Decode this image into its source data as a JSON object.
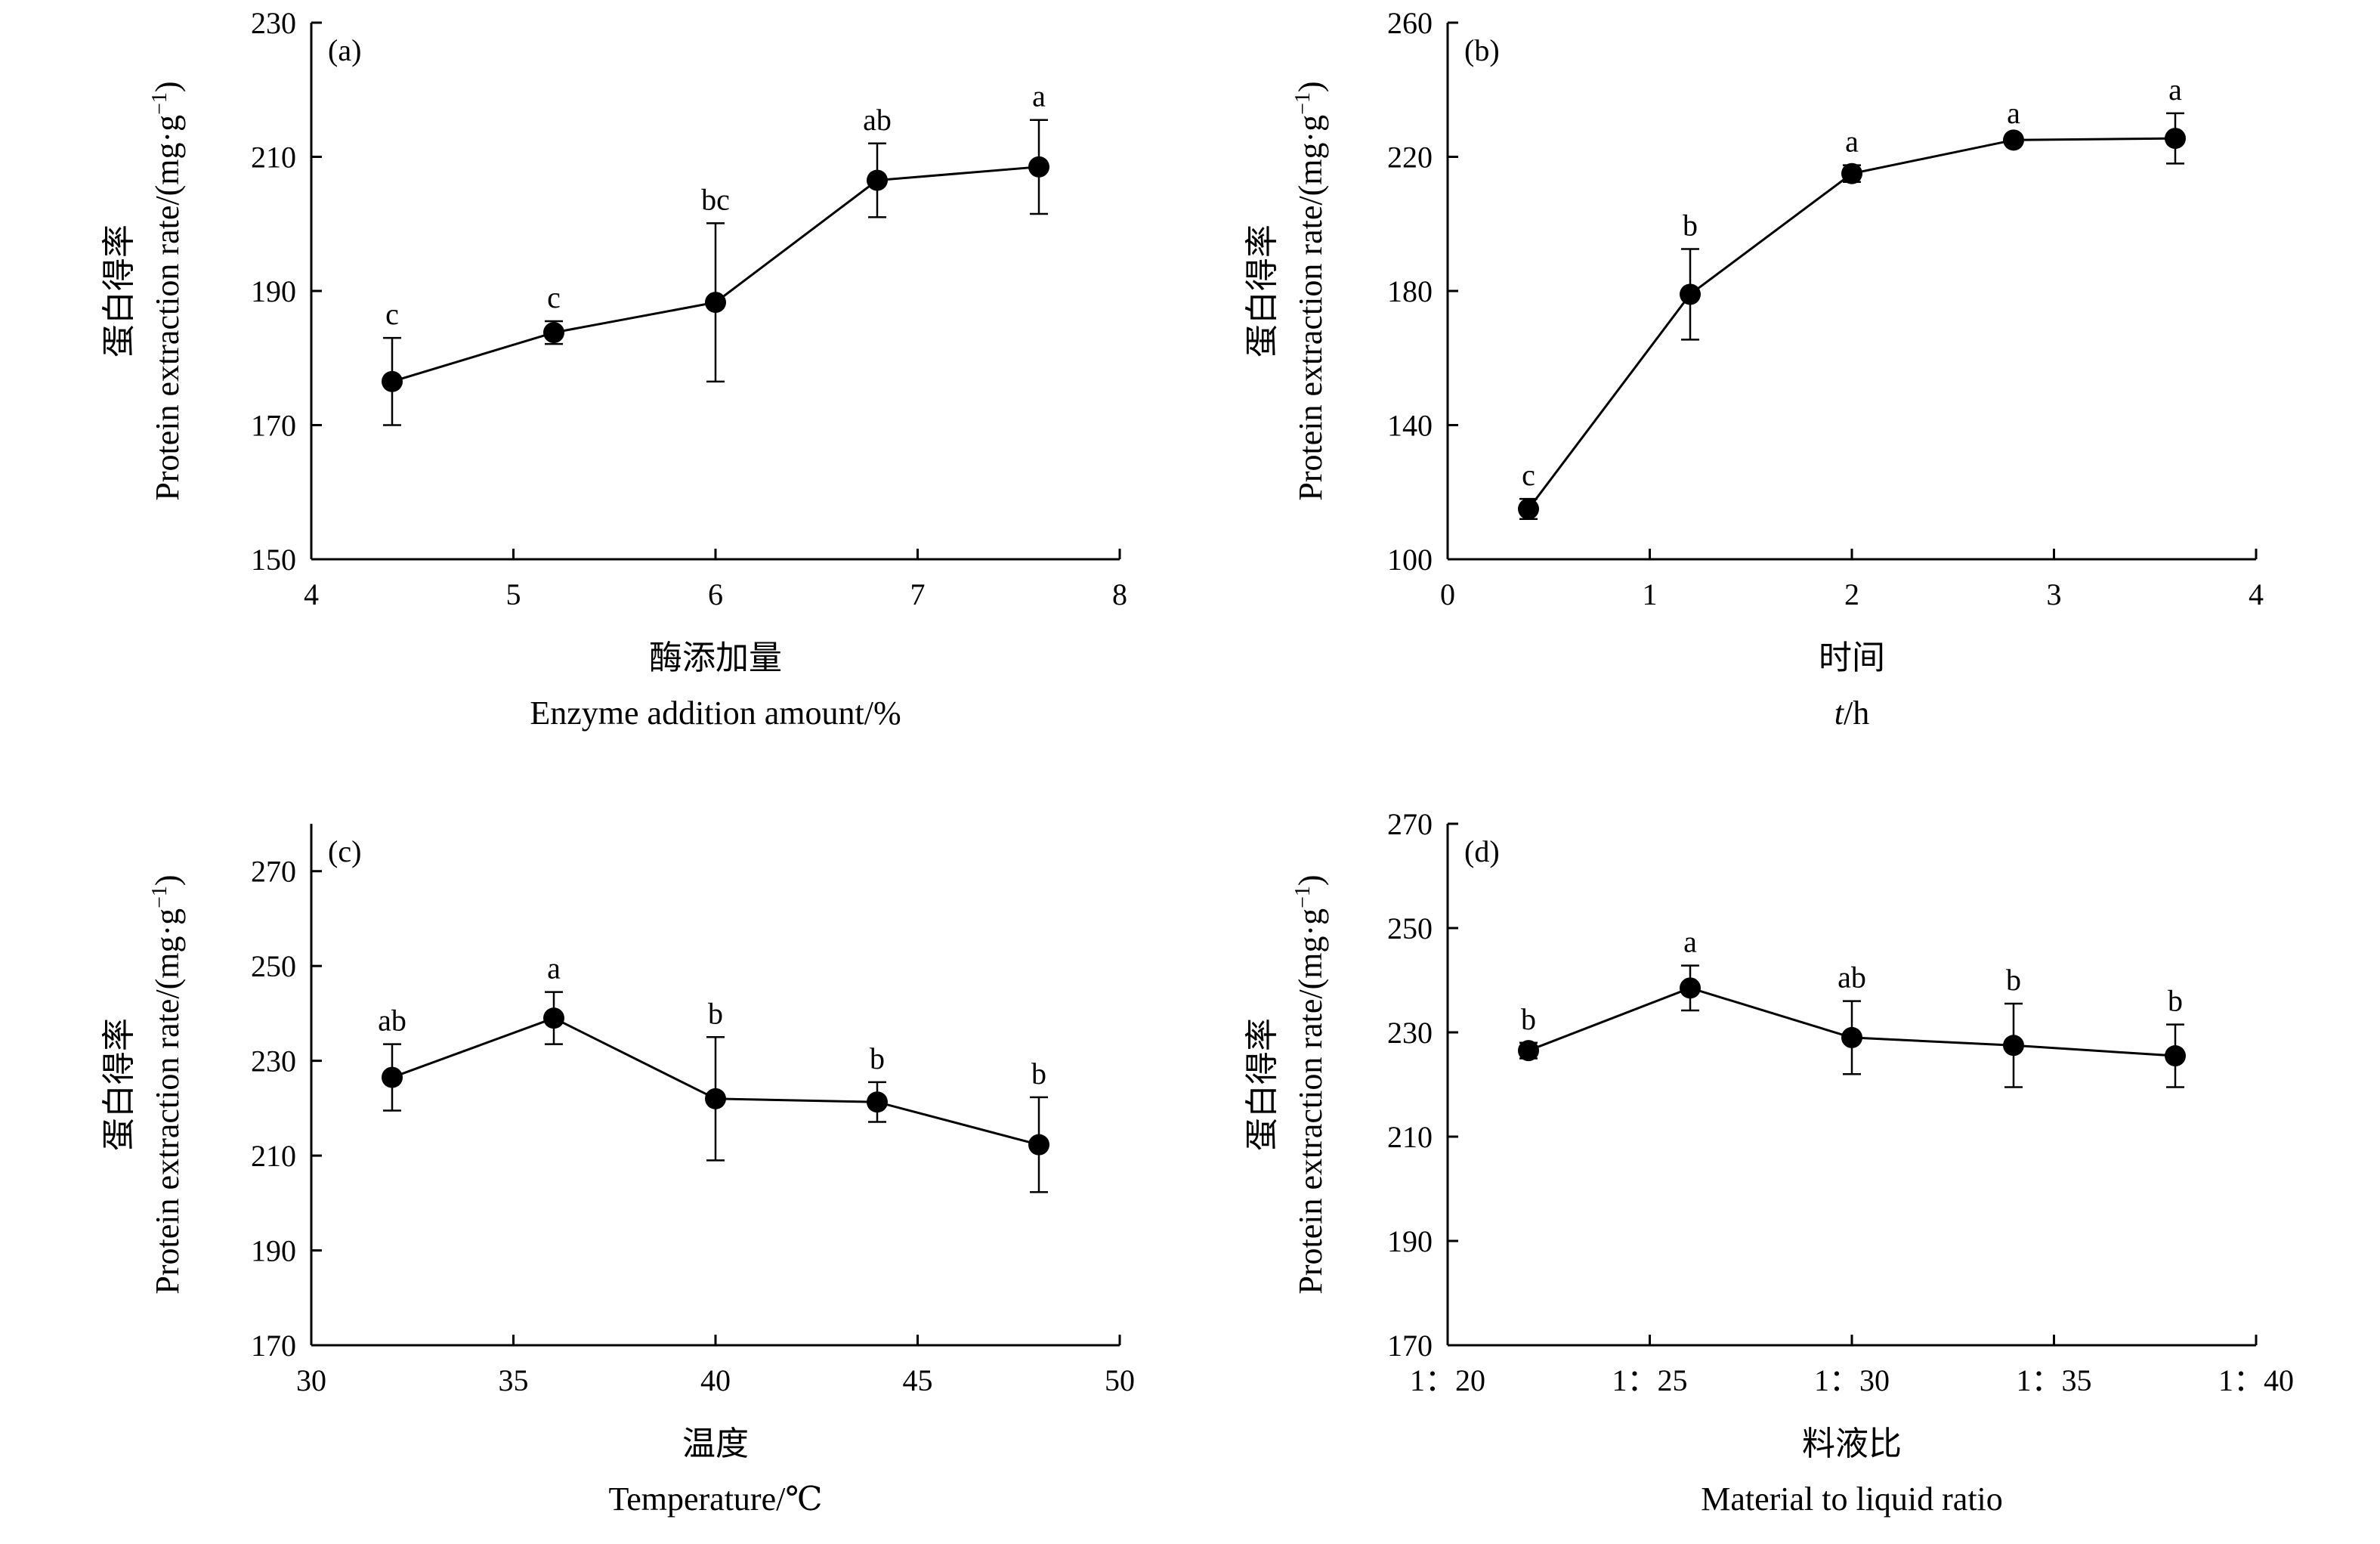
{
  "chart_data": [
    {
      "type": "line",
      "panel_label": "(a)",
      "ylabel_cn": "蛋白得率",
      "ylabel_en": "Protein extraction rate/(mg·g",
      "ylabel_sup": "−1",
      "ylabel_close": ")",
      "xlabel_cn": "酶添加量",
      "xlabel_en": "Enzyme addition amount/%",
      "xlabel_italic": "",
      "xlabel_rest": "",
      "xlim": [
        4,
        8
      ],
      "ylim": [
        150,
        230
      ],
      "xticks": [
        4,
        5,
        6,
        7,
        8
      ],
      "xtick_labels": [
        "4",
        "5",
        "6",
        "7",
        "8"
      ],
      "yticks": [
        150,
        170,
        190,
        210,
        230
      ],
      "ytick_labels": [
        "150",
        "170",
        "190",
        "210",
        "230"
      ],
      "points": [
        {
          "x": 4.4,
          "y": 176.5,
          "err_low": 6.5,
          "err_high": 6.5,
          "letter": "c"
        },
        {
          "x": 5.2,
          "y": 183.8,
          "err_low": 1.7,
          "err_high": 1.7,
          "letter": "c"
        },
        {
          "x": 6.0,
          "y": 188.3,
          "err_low": 11.8,
          "err_high": 11.8,
          "letter": "bc"
        },
        {
          "x": 6.8,
          "y": 206.5,
          "err_low": 5.5,
          "err_high": 5.5,
          "letter": "ab"
        },
        {
          "x": 7.6,
          "y": 208.5,
          "err_low": 7.0,
          "err_high": 7.0,
          "letter": "a"
        }
      ]
    },
    {
      "type": "line",
      "panel_label": "(b)",
      "ylabel_cn": "蛋白得率",
      "ylabel_en": "Protein extraction rate/(mg·g",
      "ylabel_sup": "−1",
      "ylabel_close": ")",
      "xlabel_cn": "时间",
      "xlabel_en": "",
      "xlabel_italic": "t",
      "xlabel_rest": "/h",
      "xlim": [
        0,
        4
      ],
      "ylim": [
        100,
        260
      ],
      "xticks": [
        0,
        1,
        2,
        3,
        4
      ],
      "xtick_labels": [
        "0",
        "1",
        "2",
        "3",
        "4"
      ],
      "yticks": [
        100,
        140,
        180,
        220,
        260
      ],
      "ytick_labels": [
        "100",
        "140",
        "180",
        "220",
        "260"
      ],
      "points": [
        {
          "x": 0.4,
          "y": 115.0,
          "err_low": 3.0,
          "err_high": 3.0,
          "letter": "c"
        },
        {
          "x": 1.2,
          "y": 179.0,
          "err_low": 13.5,
          "err_high": 13.5,
          "letter": "b"
        },
        {
          "x": 2.0,
          "y": 215.0,
          "err_low": 2.5,
          "err_high": 2.5,
          "letter": "a"
        },
        {
          "x": 2.8,
          "y": 225.0,
          "err_low": 1.0,
          "err_high": 1.0,
          "letter": "a"
        },
        {
          "x": 3.6,
          "y": 225.5,
          "err_low": 7.5,
          "err_high": 7.5,
          "letter": "a"
        }
      ]
    },
    {
      "type": "line",
      "panel_label": "(c)",
      "ylabel_cn": "蛋白得率",
      "ylabel_en": "Protein extraction rate/(mg·g",
      "ylabel_sup": "−1",
      "ylabel_close": ")",
      "xlabel_cn": "温度",
      "xlabel_en": "Temperature/℃",
      "xlabel_italic": "",
      "xlabel_rest": "",
      "xlim": [
        30,
        50
      ],
      "ylim": [
        170,
        280
      ],
      "xticks": [
        30,
        35,
        40,
        45,
        50
      ],
      "xtick_labels": [
        "30",
        "35",
        "40",
        "45",
        "50"
      ],
      "yticks": [
        170,
        190,
        210,
        230,
        250,
        270
      ],
      "ytick_labels": [
        "170",
        "190",
        "210",
        "230",
        "250",
        "270"
      ],
      "points": [
        {
          "x": 32,
          "y": 226.5,
          "err_low": 7.0,
          "err_high": 7.0,
          "letter": "ab"
        },
        {
          "x": 36,
          "y": 239.0,
          "err_low": 5.5,
          "err_high": 5.5,
          "letter": "a"
        },
        {
          "x": 40,
          "y": 222.0,
          "err_low": 13.0,
          "err_high": 13.0,
          "letter": "b"
        },
        {
          "x": 44,
          "y": 221.3,
          "err_low": 4.2,
          "err_high": 4.2,
          "letter": "b"
        },
        {
          "x": 48,
          "y": 212.3,
          "err_low": 10.0,
          "err_high": 10.0,
          "letter": "b"
        }
      ]
    },
    {
      "type": "line",
      "panel_label": "(d)",
      "ylabel_cn": "蛋白得率",
      "ylabel_en": "Protein extraction rate/(mg·g",
      "ylabel_sup": "−1",
      "ylabel_close": ")",
      "xlabel_cn": "料液比",
      "xlabel_en": "Material to liquid ratio",
      "xlabel_italic": "",
      "xlabel_rest": "",
      "xlim": [
        20,
        40
      ],
      "ylim": [
        170,
        270
      ],
      "xticks": [
        20,
        25,
        30,
        35,
        40
      ],
      "xtick_labels": [
        "1：20",
        "1：25",
        "1：30",
        "1：35",
        "1：40"
      ],
      "yticks": [
        170,
        190,
        210,
        230,
        250,
        270
      ],
      "ytick_labels": [
        "170",
        "190",
        "210",
        "230",
        "250",
        "270"
      ],
      "points": [
        {
          "x": 22,
          "y": 226.5,
          "err_low": 1.5,
          "err_high": 1.5,
          "letter": "b"
        },
        {
          "x": 26,
          "y": 238.5,
          "err_low": 4.3,
          "err_high": 4.3,
          "letter": "a"
        },
        {
          "x": 30,
          "y": 229.0,
          "err_low": 7.0,
          "err_high": 7.0,
          "letter": "ab"
        },
        {
          "x": 34,
          "y": 227.5,
          "err_low": 8.0,
          "err_high": 8.0,
          "letter": "b"
        },
        {
          "x": 38,
          "y": 225.5,
          "err_low": 6.0,
          "err_high": 6.0,
          "letter": "b"
        }
      ]
    }
  ]
}
